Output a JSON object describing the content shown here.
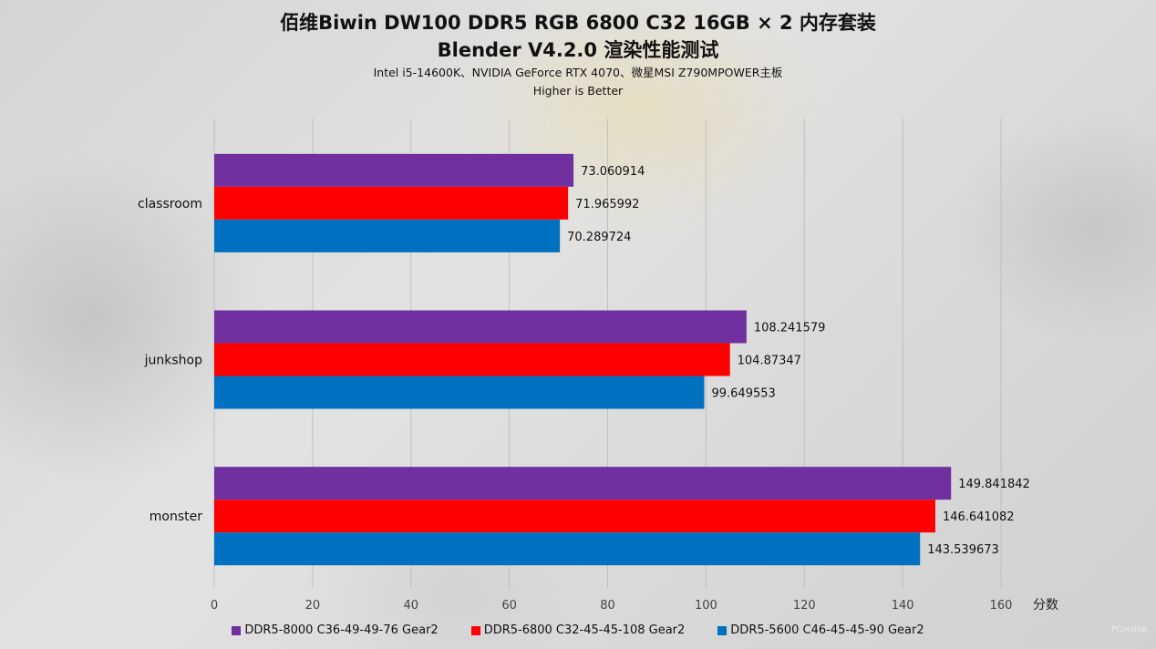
{
  "chart_data": {
    "type": "bar",
    "orientation": "horizontal",
    "title_lines": [
      "佰维Biwin DW100 DDR5 RGB 6800 C32 16GB × 2 内存套装",
      "Blender V4.2.0 渲染性能测试"
    ],
    "subtitle_lines": [
      "Intel i5-14600K、NVIDIA GeForce RTX 4070、微星MSI Z790MPOWER主板",
      "Higher is Better"
    ],
    "xlabel": "分数",
    "xlim": [
      0,
      160
    ],
    "xticks": [
      0,
      20,
      40,
      60,
      80,
      100,
      120,
      140,
      160
    ],
    "grid": true,
    "legend_position": "bottom",
    "categories": [
      "classroom",
      "junkshop",
      "monster"
    ],
    "series": [
      {
        "name": "DDR5-8000 C36-49-49-76 Gear2",
        "color": "#7030a0",
        "values": [
          73.060914,
          108.241579,
          149.841842
        ]
      },
      {
        "name": "DDR5-6800 C32-45-45-108 Gear2",
        "color": "#ff0000",
        "values": [
          71.965992,
          104.87347,
          146.641082
        ]
      },
      {
        "name": "DDR5-5600 C46-45-45-90 Gear2",
        "color": "#0070c0",
        "values": [
          70.289724,
          99.649553,
          143.539673
        ]
      }
    ],
    "value_labels": [
      [
        "73.060914",
        "108.241579",
        "149.841842"
      ],
      [
        "71.965992",
        "104.87347",
        "146.641082"
      ],
      [
        "70.289724",
        "99.649553",
        "143.539673"
      ]
    ]
  },
  "watermark": "PConline"
}
